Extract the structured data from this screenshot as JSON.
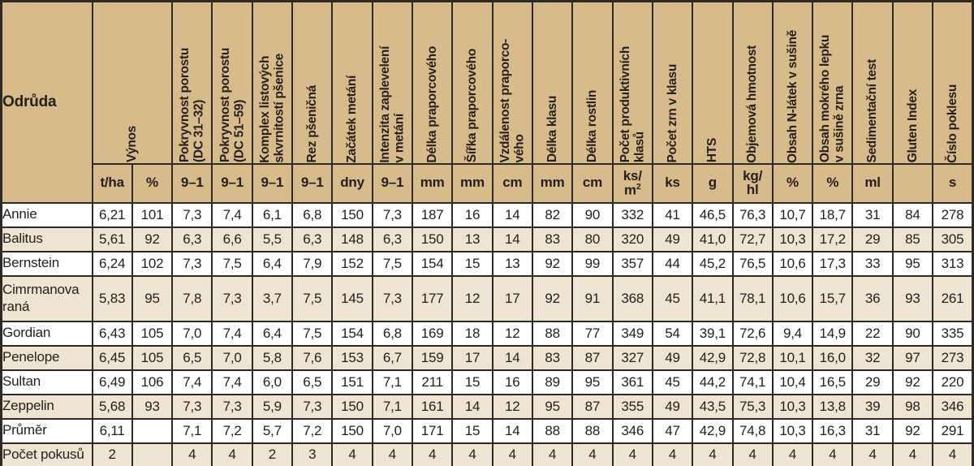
{
  "colors": {
    "header_bg": "#d8bb8a",
    "shade_bg": "#ede4d2",
    "row_bg": "#ffffff",
    "border": "#2d2a26",
    "text": "#221f1c"
  },
  "table": {
    "corner_label": "Odrůda",
    "col_groups": [
      {
        "label_lines": [
          "Výnos"
        ],
        "units": [
          [
            "t/ha"
          ],
          [
            "%"
          ]
        ]
      },
      {
        "label_lines": [
          "Pokryvnost porostu",
          "(DC 31–32)"
        ],
        "units": [
          [
            "9–1"
          ]
        ]
      },
      {
        "label_lines": [
          "Pokryvnost porostu",
          "(DC 51–59)"
        ],
        "units": [
          [
            "9–1"
          ]
        ]
      },
      {
        "label_lines": [
          "Komplex listových",
          "skvrnitostí pšenice"
        ],
        "units": [
          [
            "9–1"
          ]
        ]
      },
      {
        "label_lines": [
          "Rez pšeničná"
        ],
        "units": [
          [
            "9–1"
          ]
        ]
      },
      {
        "label_lines": [
          "Začátek metání"
        ],
        "units": [
          [
            "dny"
          ]
        ]
      },
      {
        "label_lines": [
          "Intenzita zaplevelení",
          "v metání"
        ],
        "units": [
          [
            "9–1"
          ]
        ]
      },
      {
        "label_lines": [
          "Délka praporcového"
        ],
        "units": [
          [
            "mm"
          ]
        ]
      },
      {
        "label_lines": [
          "Šířka praporcového"
        ],
        "units": [
          [
            "mm"
          ]
        ]
      },
      {
        "label_lines": [
          "Vzdálenost praporco-",
          "vého"
        ],
        "units": [
          [
            "cm"
          ]
        ]
      },
      {
        "label_lines": [
          "Délka klasu"
        ],
        "units": [
          [
            "mm"
          ]
        ]
      },
      {
        "label_lines": [
          "Délka rostlin"
        ],
        "units": [
          [
            "cm"
          ]
        ]
      },
      {
        "label_lines": [
          "Počet produktivních",
          "klasů"
        ],
        "units": [
          [
            "ks/",
            "m²"
          ]
        ]
      },
      {
        "label_lines": [
          "Počet zrn v klasu"
        ],
        "units": [
          [
            "ks"
          ]
        ]
      },
      {
        "label_lines": [
          "HTS"
        ],
        "units": [
          [
            "g"
          ]
        ]
      },
      {
        "label_lines": [
          "Objemová hmotnost"
        ],
        "units": [
          [
            "kg/",
            "hl"
          ]
        ]
      },
      {
        "label_lines": [
          "Obsah N-látek v sušině"
        ],
        "units": [
          [
            "%"
          ]
        ]
      },
      {
        "label_lines": [
          "Obsah mokrého lepku",
          "v sušině zrna"
        ],
        "units": [
          [
            "%"
          ]
        ]
      },
      {
        "label_lines": [
          "Sedimentační test"
        ],
        "units": [
          [
            "ml"
          ]
        ]
      },
      {
        "label_lines": [
          "Gluten Index"
        ],
        "units": [
          [
            ""
          ]
        ]
      },
      {
        "label_lines": [
          "Číslo poklesu"
        ],
        "units": [
          [
            "s"
          ]
        ]
      }
    ],
    "rows": [
      {
        "label_lines": [
          "Annie"
        ],
        "values": [
          "6,21",
          "101",
          "7,3",
          "7,4",
          "6,1",
          "6,8",
          "150",
          "7,3",
          "187",
          "16",
          "14",
          "82",
          "90",
          "332",
          "41",
          "46,5",
          "76,3",
          "10,7",
          "18,7",
          "31",
          "84",
          "278"
        ]
      },
      {
        "label_lines": [
          "Balitus"
        ],
        "values": [
          "5,61",
          "92",
          "6,3",
          "6,6",
          "5,5",
          "6,3",
          "148",
          "6,3",
          "150",
          "13",
          "14",
          "83",
          "80",
          "320",
          "49",
          "41,0",
          "72,7",
          "10,3",
          "17,2",
          "29",
          "85",
          "305"
        ]
      },
      {
        "label_lines": [
          "Bernstein"
        ],
        "values": [
          "6,24",
          "102",
          "7,3",
          "7,5",
          "6,4",
          "7,9",
          "152",
          "7,5",
          "154",
          "15",
          "13",
          "92",
          "99",
          "357",
          "44",
          "45,2",
          "76,5",
          "10,6",
          "17,3",
          "33",
          "95",
          "313"
        ]
      },
      {
        "label_lines": [
          "Cimrmanova",
          "raná"
        ],
        "values": [
          "5,83",
          "95",
          "7,8",
          "7,3",
          "3,7",
          "7,5",
          "145",
          "7,3",
          "177",
          "12",
          "17",
          "92",
          "91",
          "368",
          "45",
          "41,1",
          "78,1",
          "10,6",
          "15,7",
          "36",
          "93",
          "261"
        ]
      },
      {
        "label_lines": [
          "Gordian"
        ],
        "values": [
          "6,43",
          "105",
          "7,0",
          "7,4",
          "6,4",
          "7,5",
          "154",
          "6,8",
          "169",
          "18",
          "12",
          "88",
          "77",
          "349",
          "54",
          "39,1",
          "72,6",
          "9,4",
          "14,9",
          "22",
          "90",
          "335"
        ]
      },
      {
        "label_lines": [
          "Penelope"
        ],
        "values": [
          "6,45",
          "105",
          "6,5",
          "7,0",
          "5,8",
          "7,6",
          "153",
          "6,7",
          "159",
          "17",
          "14",
          "83",
          "87",
          "327",
          "49",
          "42,9",
          "72,8",
          "10,1",
          "16,0",
          "32",
          "97",
          "273"
        ]
      },
      {
        "label_lines": [
          "Sultan"
        ],
        "values": [
          "6,49",
          "106",
          "7,4",
          "7,4",
          "6,0",
          "6,5",
          "151",
          "7,1",
          "211",
          "15",
          "16",
          "89",
          "95",
          "361",
          "45",
          "44,2",
          "74,1",
          "10,4",
          "16,5",
          "29",
          "92",
          "220"
        ]
      },
      {
        "label_lines": [
          "Zeppelin"
        ],
        "values": [
          "5,68",
          "93",
          "7,3",
          "7,3",
          "5,9",
          "7,3",
          "150",
          "7,1",
          "161",
          "14",
          "12",
          "95",
          "87",
          "355",
          "49",
          "43,5",
          "75,3",
          "10,3",
          "13,8",
          "39",
          "98",
          "346"
        ]
      },
      {
        "label_lines": [
          "Průměr"
        ],
        "values": [
          "6,11",
          "",
          "7,1",
          "7,2",
          "5,7",
          "7,2",
          "150",
          "7,0",
          "171",
          "15",
          "14",
          "88",
          "88",
          "346",
          "47",
          "42,9",
          "74,8",
          "10,3",
          "16,3",
          "31",
          "92",
          "291"
        ]
      },
      {
        "label_lines": [
          "Počet pokusů"
        ],
        "values": [
          "2",
          "",
          "4",
          "4",
          "2",
          "3",
          "4",
          "4",
          "4",
          "4",
          "4",
          "4",
          "4",
          "4",
          "4",
          "4",
          "4",
          "4",
          "4",
          "4",
          "4",
          "4"
        ]
      }
    ]
  }
}
